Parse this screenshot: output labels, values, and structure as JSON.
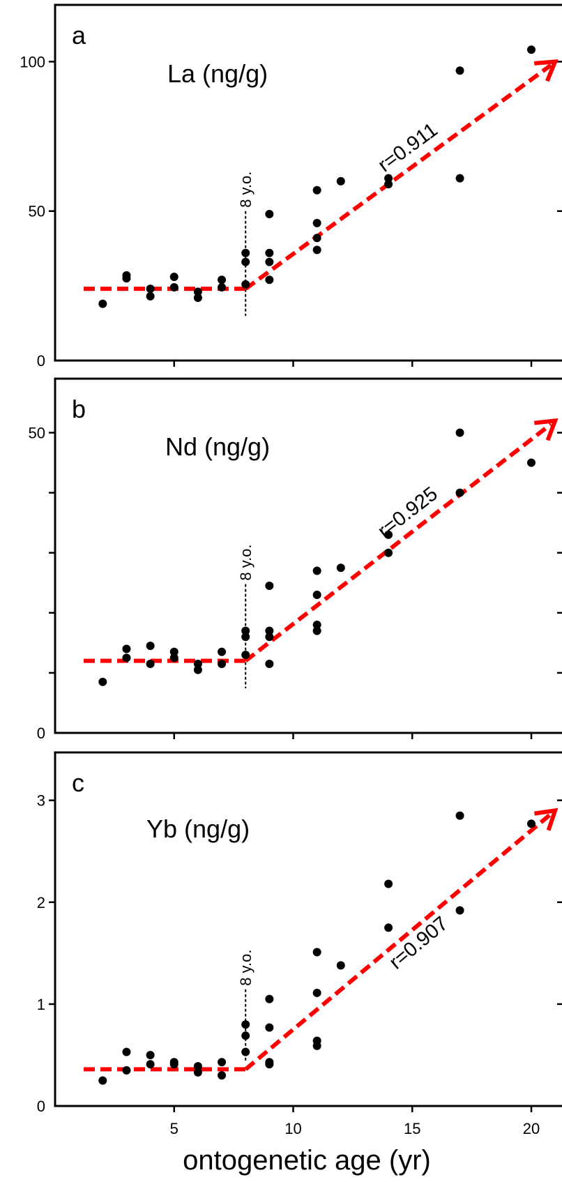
{
  "xlabel": "ontogenetic age (yr)",
  "chart_data": [
    {
      "type": "scatter",
      "panel": "a",
      "title": "La (ng/g)",
      "xlabel": "ontogenetic age (yr)",
      "ylabel": "",
      "xlim": [
        0,
        21
      ],
      "ylim": [
        0,
        119
      ],
      "x_ticks": [
        5,
        10,
        15,
        20
      ],
      "y_ticks": [
        0,
        50,
        100
      ],
      "y_tick_labels": [
        "0",
        "50",
        "100"
      ],
      "threshold": {
        "x": 8,
        "label": "8 y.o."
      },
      "trend": {
        "flat_level": 24,
        "flat_from": 1.2,
        "flat_to": 8,
        "arrow_to": [
          21,
          100
        ],
        "label": "r=0.911"
      },
      "points": [
        [
          2,
          19
        ],
        [
          3,
          27.5
        ],
        [
          3,
          28.5
        ],
        [
          4,
          21.5
        ],
        [
          4,
          24
        ],
        [
          5,
          24.5
        ],
        [
          5,
          28
        ],
        [
          6,
          21
        ],
        [
          6,
          23
        ],
        [
          7,
          24.5
        ],
        [
          7,
          27
        ],
        [
          8,
          25.5
        ],
        [
          8,
          33
        ],
        [
          8,
          36
        ],
        [
          9,
          27
        ],
        [
          9,
          33
        ],
        [
          9,
          36
        ],
        [
          9,
          49
        ],
        [
          11,
          37
        ],
        [
          11,
          41
        ],
        [
          11,
          46
        ],
        [
          11,
          57
        ],
        [
          12,
          60
        ],
        [
          14,
          59
        ],
        [
          14,
          61
        ],
        [
          17,
          61
        ],
        [
          17,
          97
        ],
        [
          20,
          104
        ]
      ]
    },
    {
      "type": "scatter",
      "panel": "b",
      "title": "Nd (ng/g)",
      "xlabel": "ontogenetic age (yr)",
      "ylabel": "",
      "xlim": [
        0,
        21
      ],
      "ylim": [
        0,
        59
      ],
      "x_ticks": [
        5,
        10,
        15,
        20
      ],
      "y_ticks": [
        0,
        10,
        20,
        30,
        40,
        50
      ],
      "y_tick_labels": [
        "0",
        "",
        "",
        "",
        "",
        "50"
      ],
      "threshold": {
        "x": 8,
        "label": "8 y.o."
      },
      "trend": {
        "flat_level": 12,
        "flat_from": 1.2,
        "flat_to": 8,
        "arrow_to": [
          21,
          52
        ],
        "label": "r=0.925"
      },
      "points": [
        [
          2,
          8.5
        ],
        [
          3,
          12.5
        ],
        [
          3,
          14
        ],
        [
          4,
          11.5
        ],
        [
          4,
          14.5
        ],
        [
          5,
          12.5
        ],
        [
          5,
          13.5
        ],
        [
          6,
          10.5
        ],
        [
          6,
          11.5
        ],
        [
          7,
          11.5
        ],
        [
          7,
          13.5
        ],
        [
          8,
          13
        ],
        [
          8,
          16
        ],
        [
          8,
          17
        ],
        [
          9,
          11.5
        ],
        [
          9,
          16
        ],
        [
          9,
          17
        ],
        [
          9,
          24.5
        ],
        [
          11,
          17
        ],
        [
          11,
          18
        ],
        [
          11,
          23
        ],
        [
          11,
          27
        ],
        [
          12,
          27.5
        ],
        [
          14,
          30
        ],
        [
          14,
          33
        ],
        [
          17,
          40
        ],
        [
          17,
          50
        ],
        [
          20,
          45
        ]
      ]
    },
    {
      "type": "scatter",
      "panel": "c",
      "title": "Yb (ng/g)",
      "xlabel": "ontogenetic age (yr)",
      "ylabel": "",
      "xlim": [
        0,
        21
      ],
      "ylim": [
        0,
        3.47
      ],
      "x_ticks": [
        5,
        10,
        15,
        20
      ],
      "x_tick_labels": [
        "5",
        "10",
        "15",
        "20"
      ],
      "y_ticks": [
        0,
        1,
        2,
        3
      ],
      "y_tick_labels": [
        "0",
        "1",
        "2",
        "3"
      ],
      "threshold": {
        "x": 8,
        "label": "8 y.o."
      },
      "trend": {
        "flat_level": 0.36,
        "flat_from": 1.2,
        "flat_to": 8,
        "arrow_to": [
          21,
          2.9
        ],
        "label": "r=0.907"
      },
      "points": [
        [
          2,
          0.25
        ],
        [
          3,
          0.35
        ],
        [
          3,
          0.53
        ],
        [
          4,
          0.41
        ],
        [
          4,
          0.5
        ],
        [
          5,
          0.41
        ],
        [
          5,
          0.43
        ],
        [
          6,
          0.33
        ],
        [
          6,
          0.39
        ],
        [
          7,
          0.3
        ],
        [
          7,
          0.43
        ],
        [
          8,
          0.53
        ],
        [
          8,
          0.69
        ],
        [
          8,
          0.8
        ],
        [
          9,
          0.41
        ],
        [
          9,
          0.43
        ],
        [
          9,
          0.77
        ],
        [
          9,
          1.05
        ],
        [
          11,
          0.59
        ],
        [
          11,
          0.64
        ],
        [
          11,
          1.11
        ],
        [
          11,
          1.51
        ],
        [
          12,
          1.38
        ],
        [
          14,
          1.75
        ],
        [
          14,
          2.18
        ],
        [
          17,
          1.92
        ],
        [
          17,
          2.85
        ],
        [
          20,
          2.77
        ]
      ]
    }
  ]
}
